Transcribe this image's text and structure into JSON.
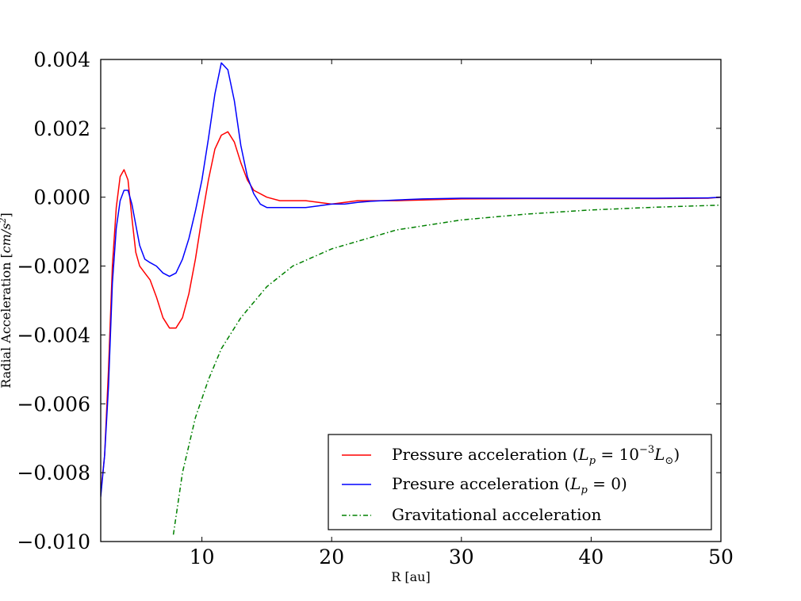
{
  "chart_data": {
    "type": "line",
    "title": "",
    "xlabel": "R [au]",
    "ylabel_parts": [
      "Radial Acceleration ",
      "[",
      "cm/s",
      "2",
      "]"
    ],
    "xlim": [
      2.2,
      50
    ],
    "ylim": [
      -0.01,
      0.004
    ],
    "x_ticks": [
      10,
      20,
      30,
      40,
      50
    ],
    "x_tick_labels": [
      "10",
      "20",
      "30",
      "40",
      "50"
    ],
    "y_ticks": [
      0.004,
      0.002,
      0.0,
      -0.002,
      -0.004,
      -0.006,
      -0.008,
      -0.01
    ],
    "y_tick_labels": [
      "0.004",
      "0.002",
      "0.000",
      "−0.002",
      "−0.004",
      "−0.006",
      "−0.008",
      "−0.010"
    ],
    "grid": false,
    "legend_position": "lower-right",
    "series": [
      {
        "name_parts": [
          "Pressure acceleration (",
          "L",
          "p",
          " = 10",
          "−3",
          "L",
          "⊙",
          ")"
        ],
        "color": "#ff0000",
        "style": "solid",
        "x": [
          2.2,
          2.5,
          2.8,
          3.1,
          3.4,
          3.7,
          4.0,
          4.3,
          4.6,
          4.9,
          5.2,
          5.6,
          6.0,
          6.5,
          7.0,
          7.5,
          8.0,
          8.5,
          9.0,
          9.5,
          10.0,
          10.5,
          11.0,
          11.5,
          12.0,
          12.5,
          13.0,
          13.5,
          14.0,
          15.0,
          16.0,
          17.0,
          18.0,
          19.0,
          20.0,
          21.0,
          22.0,
          23.0,
          25.0,
          27.0,
          30.0,
          35.0,
          40.0,
          45.0,
          49.0,
          50.0
        ],
        "y": [
          -0.0086,
          -0.0075,
          -0.005,
          -0.002,
          -0.0003,
          0.0006,
          0.0008,
          0.0005,
          -0.0006,
          -0.0016,
          -0.002,
          -0.0022,
          -0.0024,
          -0.0029,
          -0.0035,
          -0.0038,
          -0.0038,
          -0.0035,
          -0.0028,
          -0.0018,
          -0.0006,
          0.0005,
          0.0014,
          0.0018,
          0.0019,
          0.0016,
          0.001,
          0.0005,
          0.0002,
          0.0,
          -0.0001,
          -0.0001,
          -0.0001,
          -0.00015,
          -0.0002,
          -0.00015,
          -0.0001,
          -0.0001,
          -0.0001,
          -8e-05,
          -5e-05,
          -4e-05,
          -4e-05,
          -4e-05,
          -3e-05,
          0.0
        ]
      },
      {
        "name_parts": [
          "Presure acceleration (",
          "L",
          "p",
          " = 0)"
        ],
        "color": "#0000ff",
        "style": "solid",
        "x": [
          2.2,
          2.5,
          2.8,
          3.1,
          3.4,
          3.7,
          4.0,
          4.3,
          4.6,
          4.9,
          5.2,
          5.6,
          6.0,
          6.5,
          7.0,
          7.5,
          8.0,
          8.5,
          9.0,
          9.5,
          10.0,
          10.5,
          11.0,
          11.5,
          12.0,
          12.5,
          13.0,
          13.5,
          14.0,
          14.5,
          15.0,
          16.0,
          17.0,
          18.0,
          19.0,
          20.0,
          21.0,
          22.0,
          23.0,
          25.0,
          27.0,
          30.0,
          35.0,
          40.0,
          45.0,
          49.0,
          50.0
        ],
        "y": [
          -0.0087,
          -0.0075,
          -0.0055,
          -0.0025,
          -0.0009,
          -0.0001,
          0.0002,
          0.0002,
          -0.0002,
          -0.0008,
          -0.0014,
          -0.0018,
          -0.0019,
          -0.002,
          -0.0022,
          -0.0023,
          -0.0022,
          -0.0018,
          -0.0012,
          -0.0004,
          0.0005,
          0.0017,
          0.003,
          0.0039,
          0.0037,
          0.0028,
          0.0015,
          0.0006,
          0.0001,
          -0.0002,
          -0.0003,
          -0.0003,
          -0.0003,
          -0.0003,
          -0.00025,
          -0.0002,
          -0.0002,
          -0.00015,
          -0.00012,
          -8e-05,
          -5e-05,
          -3e-05,
          -3e-05,
          -3e-05,
          -3e-05,
          -2e-05,
          0.0
        ]
      },
      {
        "name_parts": [
          "Gravitational acceleration"
        ],
        "color": "#008000",
        "style": "dashdot",
        "x": [
          7.8,
          8.5,
          9.5,
          10.5,
          11.5,
          13.0,
          15.0,
          17.0,
          20.0,
          25.0,
          30.0,
          35.0,
          40.0,
          45.0,
          50.0
        ],
        "y": [
          -0.0098,
          -0.008,
          -0.0064,
          -0.0053,
          -0.0044,
          -0.0035,
          -0.0026,
          -0.002,
          -0.0015,
          -0.00095,
          -0.00066,
          -0.00049,
          -0.00037,
          -0.00029,
          -0.00023
        ]
      }
    ]
  }
}
